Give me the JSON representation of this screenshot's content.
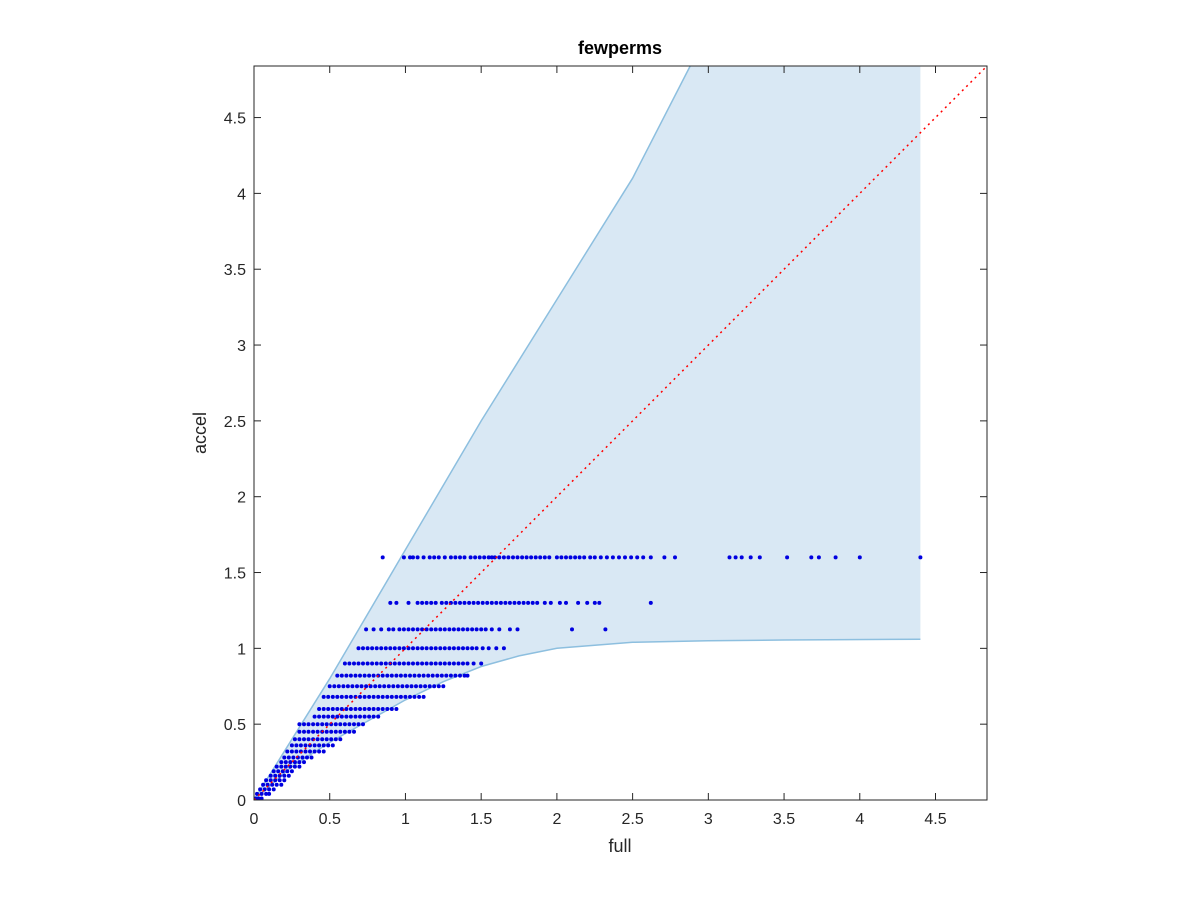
{
  "chart_data": {
    "type": "scatter",
    "title": "fewperms",
    "xlabel": "full",
    "ylabel": "accel",
    "xlim": [
      0,
      4.84
    ],
    "ylim": [
      0,
      4.84
    ],
    "xticks": [
      "0",
      "0.5",
      "1",
      "1.5",
      "2",
      "2.5",
      "3",
      "3.5",
      "4",
      "4.5"
    ],
    "yticks": [
      "0",
      "0.5",
      "1",
      "1.5",
      "2",
      "2.5",
      "3",
      "3.5",
      "4",
      "4.5"
    ],
    "grid": false,
    "colors": {
      "points": "#0000e0",
      "band_fill": "#d9e8f4",
      "band_edge": "#8dbfdf",
      "reference_line": "#ff0000",
      "axes": "#262626"
    },
    "reference_line": {
      "style": "dotted",
      "from": [
        0,
        0
      ],
      "to": [
        4.84,
        4.84
      ]
    },
    "band": {
      "upper": [
        [
          0,
          0
        ],
        [
          0.5,
          0.8
        ],
        [
          1.0,
          1.65
        ],
        [
          1.5,
          2.5
        ],
        [
          2.0,
          3.3
        ],
        [
          2.5,
          4.1
        ],
        [
          2.88,
          4.84
        ],
        [
          4.4,
          4.84
        ]
      ],
      "lower": [
        [
          0,
          0
        ],
        [
          0.25,
          0.22
        ],
        [
          0.5,
          0.38
        ],
        [
          0.75,
          0.52
        ],
        [
          1.0,
          0.66
        ],
        [
          1.25,
          0.78
        ],
        [
          1.5,
          0.88
        ],
        [
          1.75,
          0.95
        ],
        [
          2.0,
          1.0
        ],
        [
          2.5,
          1.04
        ],
        [
          3.0,
          1.05
        ],
        [
          3.5,
          1.055
        ],
        [
          4.4,
          1.06
        ]
      ],
      "x_end": 4.4
    },
    "rows": [
      {
        "y": 1.6,
        "x": [
          0.85,
          0.99,
          1.03,
          1.05,
          1.08,
          1.12,
          1.16,
          1.19,
          1.22,
          1.26,
          1.3,
          1.33,
          1.36,
          1.39,
          1.43,
          1.46,
          1.49,
          1.52,
          1.55,
          1.57,
          1.59,
          1.62,
          1.65,
          1.68,
          1.71,
          1.74,
          1.77,
          1.8,
          1.83,
          1.86,
          1.89,
          1.92,
          1.95,
          2.0,
          2.03,
          2.06,
          2.09,
          2.12,
          2.15,
          2.18,
          2.22,
          2.25,
          2.29,
          2.33,
          2.37,
          2.41,
          2.45,
          2.49,
          2.53,
          2.57,
          2.62,
          2.71,
          2.78,
          3.14,
          3.18,
          3.22,
          3.28,
          3.34,
          3.52,
          3.68,
          3.73,
          3.84,
          4.0,
          4.4
        ]
      },
      {
        "y": 1.3,
        "x": [
          0.9,
          0.94,
          1.02,
          1.08,
          1.11,
          1.14,
          1.17,
          1.2,
          1.24,
          1.27,
          1.3,
          1.33,
          1.36,
          1.39,
          1.42,
          1.45,
          1.48,
          1.51,
          1.54,
          1.57,
          1.6,
          1.63,
          1.66,
          1.69,
          1.72,
          1.75,
          1.78,
          1.81,
          1.84,
          1.87,
          1.92,
          1.96,
          2.02,
          2.06,
          2.14,
          2.2,
          2.25,
          2.28,
          2.62
        ]
      },
      {
        "y": 1.125,
        "x": [
          0.74,
          0.79,
          0.84,
          0.89,
          0.92,
          0.96,
          0.99,
          1.02,
          1.05,
          1.08,
          1.11,
          1.14,
          1.17,
          1.2,
          1.23,
          1.26,
          1.29,
          1.32,
          1.35,
          1.38,
          1.41,
          1.44,
          1.47,
          1.5,
          1.53,
          1.57,
          1.62,
          1.69,
          1.74,
          2.1,
          2.32
        ]
      },
      {
        "y": 1.0,
        "x": [
          0.69,
          0.72,
          0.75,
          0.78,
          0.81,
          0.84,
          0.87,
          0.9,
          0.93,
          0.96,
          0.99,
          1.02,
          1.05,
          1.08,
          1.11,
          1.14,
          1.17,
          1.2,
          1.23,
          1.26,
          1.29,
          1.32,
          1.35,
          1.38,
          1.41,
          1.44,
          1.47,
          1.51,
          1.55,
          1.6,
          1.65
        ]
      },
      {
        "y": 0.9,
        "x": [
          0.6,
          0.63,
          0.66,
          0.69,
          0.72,
          0.75,
          0.78,
          0.81,
          0.84,
          0.87,
          0.9,
          0.93,
          0.96,
          0.99,
          1.02,
          1.05,
          1.08,
          1.11,
          1.14,
          1.17,
          1.2,
          1.23,
          1.26,
          1.29,
          1.32,
          1.35,
          1.38,
          1.41,
          1.45,
          1.5
        ]
      },
      {
        "y": 0.82,
        "x": [
          0.55,
          0.58,
          0.61,
          0.64,
          0.67,
          0.7,
          0.73,
          0.76,
          0.79,
          0.82,
          0.85,
          0.88,
          0.91,
          0.94,
          0.97,
          1.0,
          1.03,
          1.06,
          1.09,
          1.12,
          1.15,
          1.18,
          1.21,
          1.24,
          1.27,
          1.3,
          1.33,
          1.36,
          1.39,
          1.41
        ]
      },
      {
        "y": 0.75,
        "x": [
          0.5,
          0.53,
          0.56,
          0.59,
          0.62,
          0.65,
          0.68,
          0.71,
          0.74,
          0.77,
          0.8,
          0.83,
          0.86,
          0.89,
          0.92,
          0.95,
          0.98,
          1.01,
          1.04,
          1.07,
          1.1,
          1.13,
          1.16,
          1.19,
          1.22,
          1.25
        ]
      },
      {
        "y": 0.68,
        "x": [
          0.46,
          0.49,
          0.52,
          0.55,
          0.58,
          0.61,
          0.64,
          0.67,
          0.7,
          0.73,
          0.76,
          0.79,
          0.82,
          0.85,
          0.88,
          0.91,
          0.94,
          0.97,
          1.0,
          1.03,
          1.06,
          1.09,
          1.12
        ]
      },
      {
        "y": 0.6,
        "x": [
          0.43,
          0.46,
          0.49,
          0.52,
          0.55,
          0.58,
          0.61,
          0.64,
          0.67,
          0.7,
          0.73,
          0.76,
          0.79,
          0.82,
          0.85,
          0.88,
          0.91,
          0.94
        ]
      },
      {
        "y": 0.55,
        "x": [
          0.4,
          0.43,
          0.46,
          0.49,
          0.52,
          0.55,
          0.58,
          0.61,
          0.64,
          0.67,
          0.7,
          0.73,
          0.76,
          0.79,
          0.82
        ]
      },
      {
        "y": 0.5,
        "x": [
          0.3,
          0.33,
          0.36,
          0.39,
          0.42,
          0.45,
          0.48,
          0.51,
          0.54,
          0.57,
          0.6,
          0.63,
          0.66,
          0.69,
          0.72
        ]
      },
      {
        "y": 0.45,
        "x": [
          0.3,
          0.33,
          0.36,
          0.39,
          0.42,
          0.45,
          0.48,
          0.51,
          0.54,
          0.57,
          0.6,
          0.63,
          0.66
        ]
      },
      {
        "y": 0.4,
        "x": [
          0.27,
          0.3,
          0.33,
          0.36,
          0.39,
          0.42,
          0.45,
          0.48,
          0.51,
          0.54,
          0.57
        ]
      },
      {
        "y": 0.36,
        "x": [
          0.25,
          0.28,
          0.31,
          0.34,
          0.37,
          0.4,
          0.43,
          0.46,
          0.49,
          0.52
        ]
      },
      {
        "y": 0.32,
        "x": [
          0.22,
          0.25,
          0.28,
          0.31,
          0.34,
          0.37,
          0.4,
          0.43,
          0.46
        ]
      },
      {
        "y": 0.28,
        "x": [
          0.2,
          0.23,
          0.26,
          0.29,
          0.32,
          0.35,
          0.38
        ]
      },
      {
        "y": 0.25,
        "x": [
          0.18,
          0.21,
          0.24,
          0.27,
          0.3,
          0.33
        ]
      },
      {
        "y": 0.22,
        "x": [
          0.15,
          0.18,
          0.21,
          0.24,
          0.27,
          0.3
        ]
      },
      {
        "y": 0.19,
        "x": [
          0.13,
          0.16,
          0.19,
          0.22,
          0.25
        ]
      },
      {
        "y": 0.16,
        "x": [
          0.11,
          0.14,
          0.17,
          0.2,
          0.23
        ]
      },
      {
        "y": 0.13,
        "x": [
          0.08,
          0.11,
          0.14,
          0.17,
          0.2
        ]
      },
      {
        "y": 0.1,
        "x": [
          0.06,
          0.09,
          0.12,
          0.15,
          0.18
        ]
      },
      {
        "y": 0.07,
        "x": [
          0.04,
          0.07,
          0.1,
          0.13
        ]
      },
      {
        "y": 0.04,
        "x": [
          0.02,
          0.05,
          0.08,
          0.1
        ]
      },
      {
        "y": 0.01,
        "x": [
          0.01,
          0.03,
          0.05
        ]
      }
    ]
  }
}
